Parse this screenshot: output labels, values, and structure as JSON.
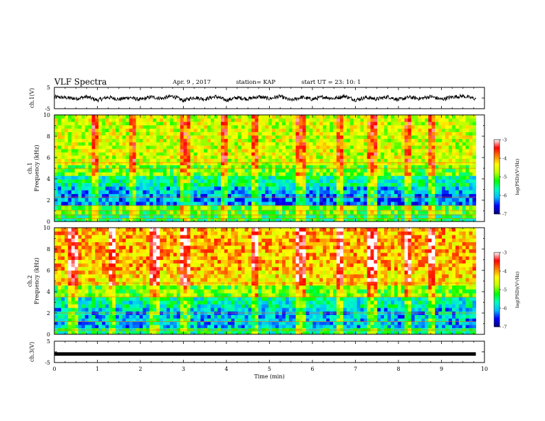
{
  "header": {
    "title": "VLF Spectra",
    "date": "Apr. 9 , 2017",
    "station": "station= KAP",
    "start": "start UT = 23: 10: 1"
  },
  "colors": {
    "background": "#ffffff",
    "axis": "#000000",
    "trace": "#000000"
  },
  "chart_data": [
    {
      "type": "line",
      "panel": "ch1-waveform",
      "ylabel": "ch.1(V)",
      "ylim": [
        -5,
        5
      ],
      "yticks": [
        "5",
        "-5"
      ],
      "xlim": [
        0,
        10
      ],
      "series": [
        {
          "x": [
            0,
            0.25,
            0.5,
            0.75,
            1,
            1.25,
            1.5,
            1.75,
            2,
            2.25,
            2.5,
            2.75,
            3,
            3.25,
            3.5,
            3.75,
            4,
            4.25,
            4.5,
            4.75,
            5,
            5.25,
            5.5,
            5.75,
            6,
            6.25,
            6.5,
            6.75,
            7,
            7.25,
            7.5,
            7.75,
            8,
            8.25,
            8.5,
            8.75,
            9,
            9.25,
            9.5,
            9.8
          ],
          "y": [
            0.5,
            0.2,
            -0.3,
            0.6,
            -1.0,
            0.4,
            -0.6,
            0.3,
            -0.8,
            0.5,
            -0.2,
            0.9,
            -1.2,
            0.3,
            -0.5,
            0.7,
            -1.0,
            0.2,
            -0.4,
            0.6,
            -0.3,
            0.8,
            -1.1,
            0.4,
            -0.6,
            0.5,
            -0.2,
            0.9,
            -0.9,
            0.3,
            -0.5,
            0.6,
            -0.8,
            0.4,
            -0.3,
            0.7,
            -0.6,
            0.5,
            0.9,
            -0.4
          ]
        }
      ]
    },
    {
      "type": "heatmap",
      "panel": "ch1-spectrogram",
      "ylabel_line1": "ch.1",
      "ylabel_line2": "Frequency (kHz)",
      "ylim": [
        0,
        10
      ],
      "yticks": [
        "0",
        "2",
        "4",
        "6",
        "8",
        "10"
      ],
      "xlim": [
        0,
        10
      ],
      "colorbar": {
        "label": "log(PSD)(V²/Hz)",
        "range": [
          -7,
          -3
        ],
        "ticks": [
          "-3",
          "-4",
          "-5",
          "-6",
          "-7"
        ],
        "colormap": [
          "#000080",
          "#0000ff",
          "#00bfff",
          "#00ffbf",
          "#00ff00",
          "#bfff00",
          "#ffff00",
          "#ff8000",
          "#ff0000",
          "#ffffff"
        ]
      },
      "bands_khz": [
        {
          "from": 0,
          "to": 0.7,
          "level": -5.4
        },
        {
          "from": 0.7,
          "to": 1.5,
          "level": -5.1
        },
        {
          "from": 1.5,
          "to": 2.6,
          "level": -6.2
        },
        {
          "from": 2.6,
          "to": 3.3,
          "level": -6.0
        },
        {
          "from": 3.3,
          "to": 4.3,
          "level": -5.6
        },
        {
          "from": 4.3,
          "to": 5.3,
          "level": -5.0
        },
        {
          "from": 5.3,
          "to": 6.5,
          "level": -4.6
        },
        {
          "from": 6.5,
          "to": 10,
          "level": -4.6
        }
      ],
      "horizontal_lines_khz": [
        0.3,
        0.6,
        1.0,
        1.5,
        2.3,
        5.0,
        5.5
      ],
      "bursts_min": [
        0.9,
        1.8,
        2.95,
        3.0,
        3.9,
        4.6,
        5.7,
        6.6,
        7.35,
        8.2,
        8.75
      ]
    },
    {
      "type": "heatmap",
      "panel": "ch2-spectrogram",
      "ylabel_line1": "ch.2",
      "ylabel_line2": "Frequency (kHz)",
      "ylim": [
        0,
        10
      ],
      "yticks": [
        "0",
        "2",
        "4",
        "6",
        "8",
        "10"
      ],
      "xlim": [
        0,
        10
      ],
      "colorbar": {
        "label": "log(PSD)(V²/Hz)",
        "range": [
          -7,
          -3
        ],
        "ticks": [
          "-3",
          "-4",
          "-5",
          "-6",
          "-7"
        ],
        "colormap": [
          "#000080",
          "#0000ff",
          "#00bfff",
          "#00ffbf",
          "#00ff00",
          "#bfff00",
          "#ffff00",
          "#ff8000",
          "#ff0000",
          "#ffffff"
        ]
      },
      "bands_khz": [
        {
          "from": 0,
          "to": 0.6,
          "level": -5.5
        },
        {
          "from": 0.6,
          "to": 1.5,
          "level": -6.0
        },
        {
          "from": 1.5,
          "to": 2.5,
          "level": -6.0
        },
        {
          "from": 2.5,
          "to": 3.5,
          "level": -5.7
        },
        {
          "from": 3.5,
          "to": 4.6,
          "level": -5.0
        },
        {
          "from": 4.6,
          "to": 6.0,
          "level": -4.3
        },
        {
          "from": 6.0,
          "to": 10,
          "level": -4.1
        }
      ],
      "horizontal_lines_khz": [
        0.4,
        1.2,
        2.0,
        3.5,
        4.8
      ],
      "bursts_min": [
        0.4,
        1.3,
        2.3,
        2.95,
        3.0,
        4.6,
        5.7,
        6.6,
        7.35,
        8.2,
        8.75
      ]
    },
    {
      "type": "line",
      "panel": "ch3-waveform",
      "ylabel": "ch.3(V)",
      "ylim": [
        -5,
        5
      ],
      "yticks": [
        "5",
        "-5"
      ],
      "xlim": [
        0,
        10
      ],
      "xlabel": "Time (min)",
      "xticks": [
        "0",
        "1",
        "2",
        "3",
        "4",
        "5",
        "6",
        "7",
        "8",
        "9",
        "10"
      ],
      "series": [
        {
          "x": [
            0,
            9.8
          ],
          "y": [
            -1,
            -1
          ]
        }
      ]
    }
  ]
}
